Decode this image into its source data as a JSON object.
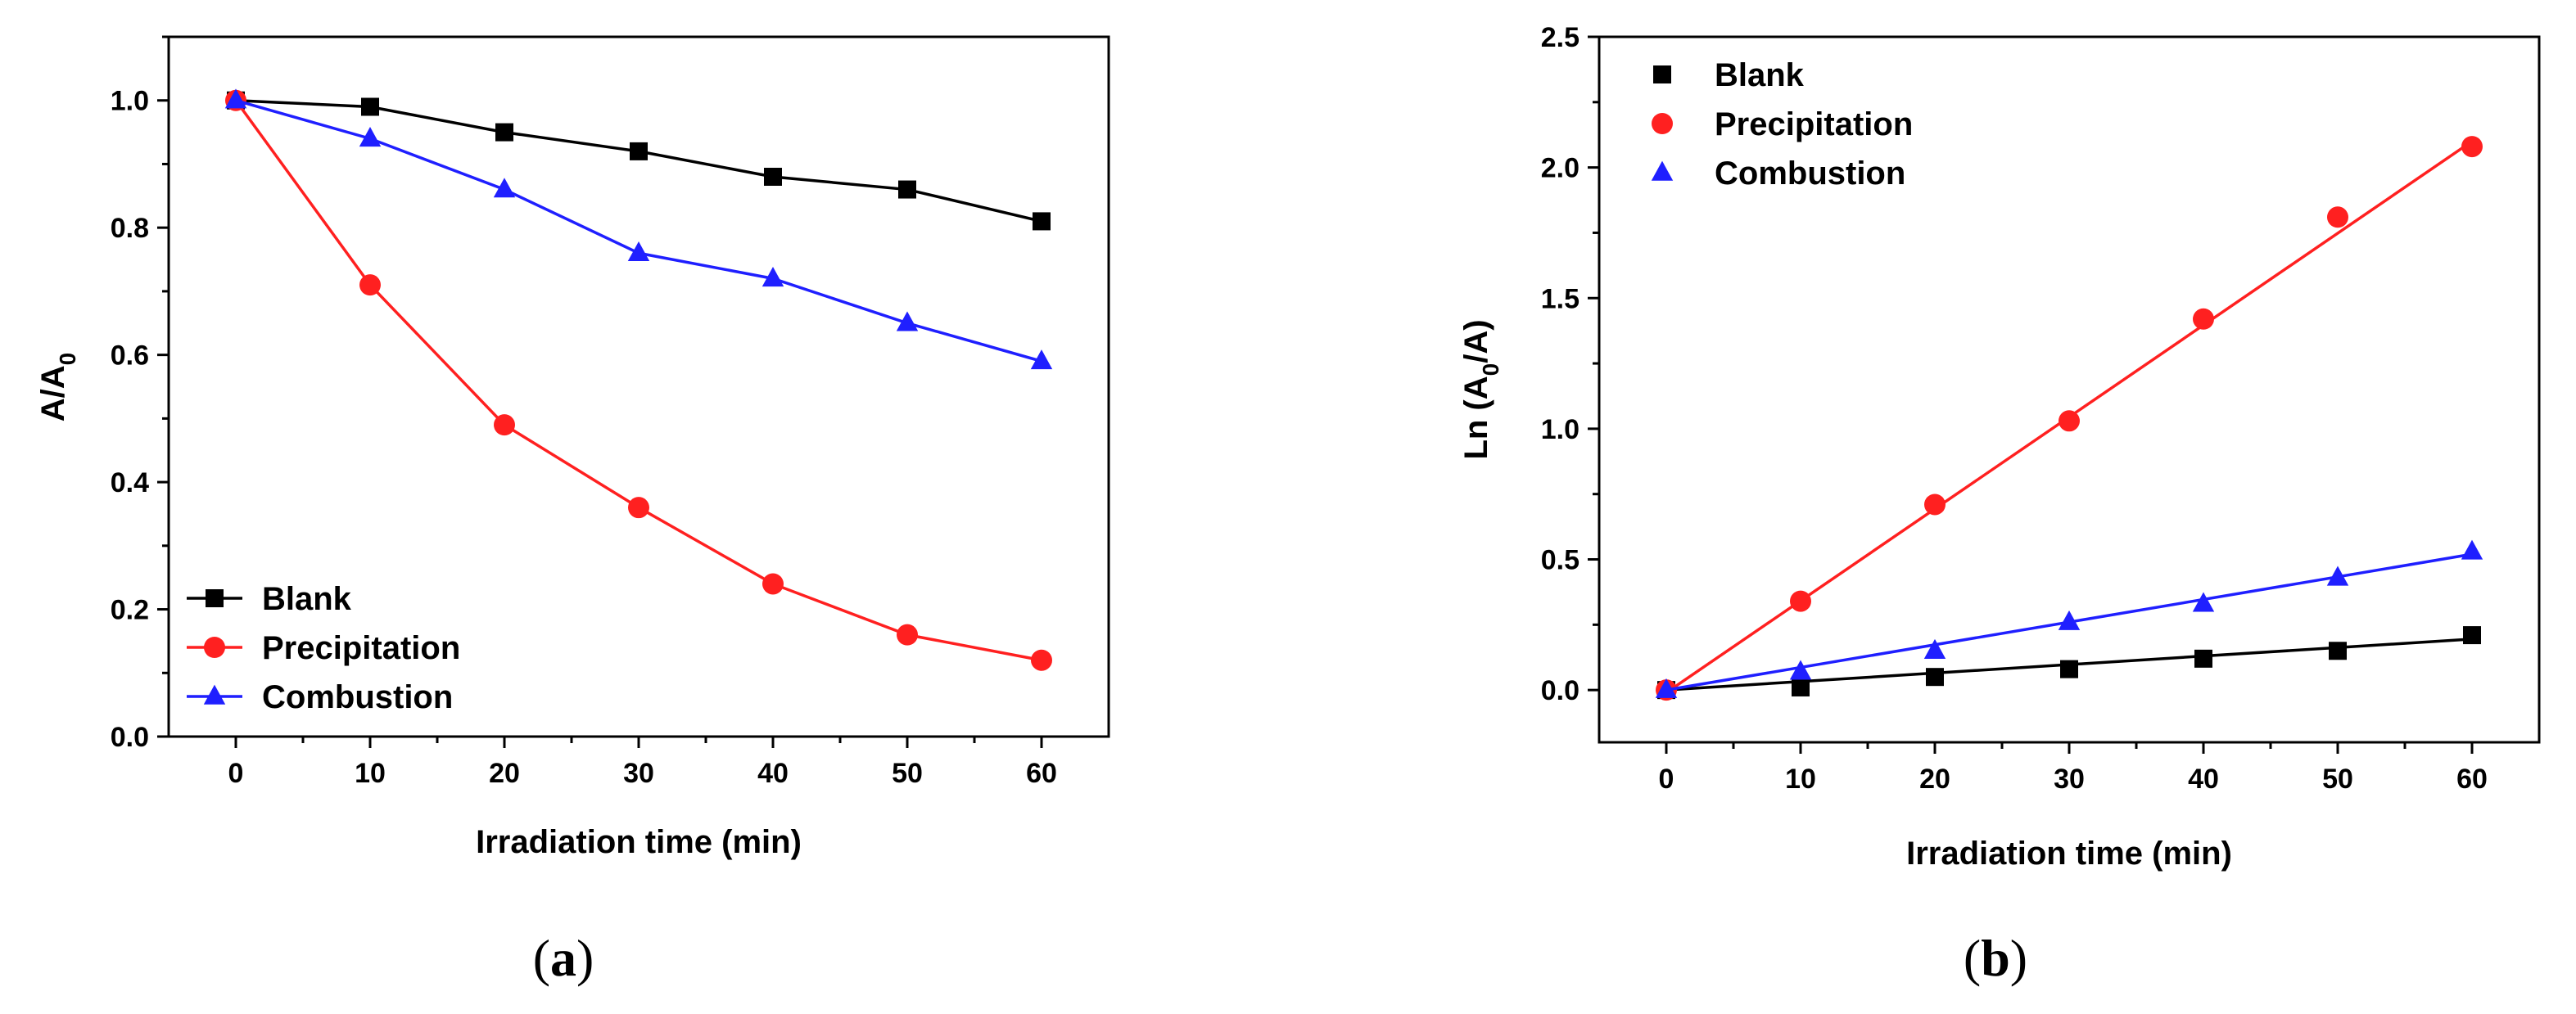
{
  "chart_data": [
    {
      "type": "line",
      "panel": "a",
      "panel_label_letter": "a",
      "xlabel": "Irradiation time (min)",
      "ylabel_main": "A/A",
      "ylabel_sub": "0",
      "xlim": [
        -5,
        65
      ],
      "ylim": [
        0,
        1.1
      ],
      "xticks": [
        0,
        10,
        20,
        30,
        40,
        50,
        60
      ],
      "yticks": [
        0.0,
        0.2,
        0.4,
        0.6,
        0.8,
        1.0
      ],
      "xtick_labels": [
        "0",
        "10",
        "20",
        "30",
        "40",
        "50",
        "60"
      ],
      "ytick_labels": [
        "0.0",
        "0.2",
        "0.4",
        "0.6",
        "0.8",
        "1.0"
      ],
      "legend_position": "bottom-left",
      "series": [
        {
          "name": "Blank",
          "color": "#000000",
          "marker": "square",
          "x": [
            0,
            10,
            20,
            30,
            40,
            50,
            60
          ],
          "y": [
            1.0,
            0.99,
            0.95,
            0.92,
            0.88,
            0.86,
            0.81
          ]
        },
        {
          "name": "Precipitation",
          "color": "#ff2020",
          "marker": "circle",
          "x": [
            0,
            10,
            20,
            30,
            40,
            50,
            60
          ],
          "y": [
            1.0,
            0.71,
            0.49,
            0.36,
            0.24,
            0.16,
            0.12
          ]
        },
        {
          "name": "Combustion",
          "color": "#1f1fff",
          "marker": "triangle",
          "x": [
            0,
            10,
            20,
            30,
            40,
            50,
            60
          ],
          "y": [
            1.0,
            0.94,
            0.86,
            0.76,
            0.72,
            0.65,
            0.59
          ]
        }
      ]
    },
    {
      "type": "scatter",
      "panel": "b",
      "panel_label_letter": "b",
      "xlabel": "Irradiation time (min)",
      "ylabel_pre": "Ln (A",
      "ylabel_sub": "0",
      "ylabel_post": "/A)",
      "xlim": [
        -5,
        65
      ],
      "ylim": [
        -0.2,
        2.5
      ],
      "xticks": [
        0,
        10,
        20,
        30,
        40,
        50,
        60
      ],
      "yticks": [
        0.0,
        0.5,
        1.0,
        1.5,
        2.0,
        2.5
      ],
      "xtick_labels": [
        "0",
        "10",
        "20",
        "30",
        "40",
        "50",
        "60"
      ],
      "ytick_labels": [
        "0.0",
        "0.5",
        "1.0",
        "1.5",
        "2.0",
        "2.5"
      ],
      "legend_position": "top-left",
      "series": [
        {
          "name": "Blank",
          "color": "#000000",
          "marker": "square",
          "x": [
            0,
            10,
            20,
            30,
            40,
            50,
            60
          ],
          "y": [
            0.0,
            0.01,
            0.05,
            0.08,
            0.12,
            0.15,
            0.21
          ],
          "fit": [
            0.0,
            0.195
          ]
        },
        {
          "name": "Precipitation",
          "color": "#ff2020",
          "marker": "circle",
          "x": [
            0,
            10,
            20,
            30,
            40,
            50,
            60
          ],
          "y": [
            0.0,
            0.34,
            0.71,
            1.03,
            1.42,
            1.81,
            2.08
          ],
          "fit": [
            -0.01,
            2.1
          ]
        },
        {
          "name": "Combustion",
          "color": "#1f1fff",
          "marker": "triangle",
          "x": [
            0,
            10,
            20,
            30,
            40,
            50,
            60
          ],
          "y": [
            0.0,
            0.07,
            0.15,
            0.26,
            0.33,
            0.43,
            0.53
          ],
          "fit": [
            0.0,
            0.52
          ]
        }
      ]
    }
  ]
}
